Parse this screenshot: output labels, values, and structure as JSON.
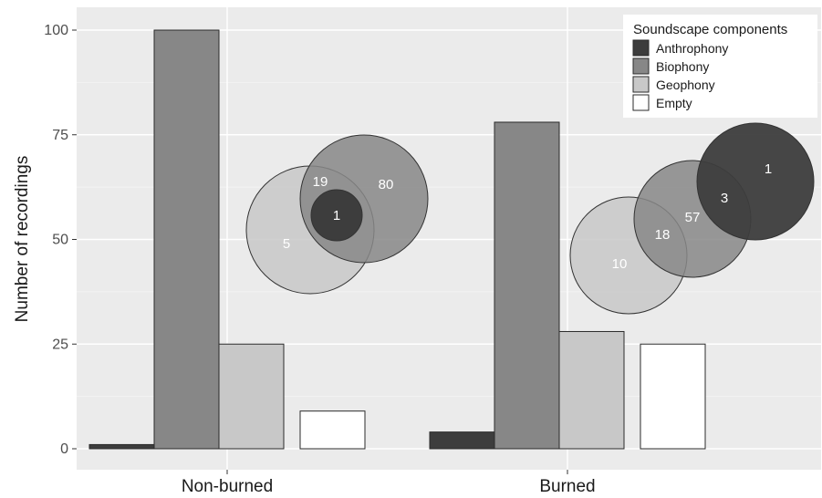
{
  "chart_data": {
    "type": "bar",
    "title": "",
    "xlabel": "",
    "ylabel": "Number of recordings",
    "ylim": [
      0,
      103
    ],
    "yticks": [
      0,
      25,
      50,
      75,
      100
    ],
    "grid": true,
    "categories": [
      "Non-burned",
      "Burned"
    ],
    "series": [
      {
        "name": "Anthrophony",
        "color": "#3d3d3d",
        "values": [
          1,
          4
        ]
      },
      {
        "name": "Biophony",
        "color": "#878787",
        "values": [
          100,
          78
        ]
      },
      {
        "name": "Geophony",
        "color": "#c8c8c8",
        "values": [
          25,
          28
        ]
      },
      {
        "name": "Empty",
        "color": "#ffffff",
        "values": [
          9,
          25
        ]
      }
    ],
    "legend": {
      "title": "Soundscape components",
      "position": "top-right",
      "items": [
        "Anthrophony",
        "Biophony",
        "Geophony",
        "Empty"
      ]
    },
    "venn_annotations": [
      {
        "category": "Non-burned",
        "regions": [
          {
            "component": "Geophony only",
            "value": "5"
          },
          {
            "component": "Geophony and Biophony",
            "value": "19"
          },
          {
            "component": "Biophony only",
            "value": "80"
          },
          {
            "component": "Anthrophony",
            "value": "1"
          }
        ]
      },
      {
        "category": "Burned",
        "regions": [
          {
            "component": "Geophony only",
            "value": "10"
          },
          {
            "component": "Geophony and Biophony",
            "value": "18"
          },
          {
            "component": "Biophony only",
            "value": "57"
          },
          {
            "component": "Biophony and Anthrophony",
            "value": "3"
          },
          {
            "component": "Anthrophony only",
            "value": "1"
          }
        ]
      }
    ]
  }
}
